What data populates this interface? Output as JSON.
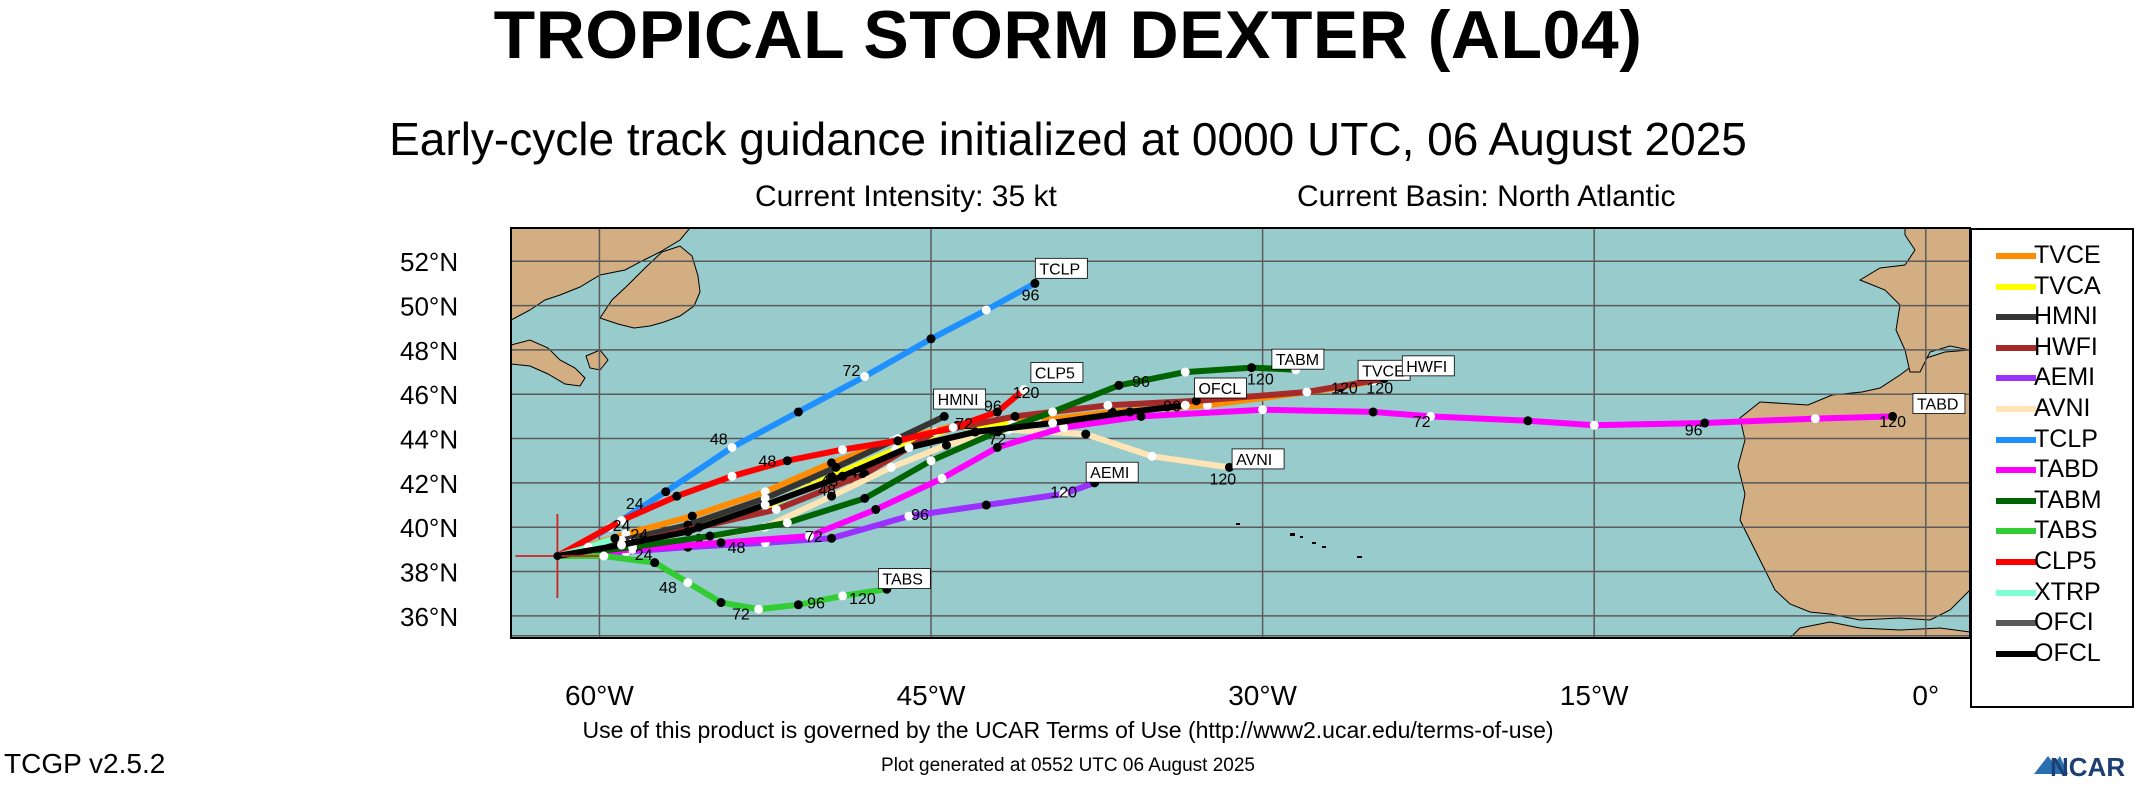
{
  "header": {
    "title": "TROPICAL STORM DEXTER (AL04)",
    "subtitle": "Early-cycle track guidance initialized at 0000 UTC, 06 August 2025",
    "intensity": "Current Intensity: 35 kt",
    "basin": "Current Basin: North Atlantic"
  },
  "map": {
    "lat_range": [
      35,
      53.5
    ],
    "lon_range": [
      -64,
      2
    ],
    "lat_ticks": [
      {
        "value": 36,
        "label": "36°N"
      },
      {
        "value": 38,
        "label": "38°N"
      },
      {
        "value": 40,
        "label": "40°N"
      },
      {
        "value": 42,
        "label": "42°N"
      },
      {
        "value": 44,
        "label": "44°N"
      },
      {
        "value": 46,
        "label": "46°N"
      },
      {
        "value": 48,
        "label": "48°N"
      },
      {
        "value": 50,
        "label": "50°N"
      },
      {
        "value": 52,
        "label": "52°N"
      }
    ],
    "lon_ticks": [
      {
        "value": -60,
        "label": "60°W"
      },
      {
        "value": -45,
        "label": "45°W"
      },
      {
        "value": -30,
        "label": "30°W"
      },
      {
        "value": -15,
        "label": "15°W"
      },
      {
        "value": 0,
        "label": "0°"
      }
    ],
    "initial_position": {
      "lon": -61.9,
      "lat": 38.7
    },
    "colors": {
      "ocean": "#98cbcc",
      "land": "#d2ae82",
      "grid": "#5a5a5a"
    }
  },
  "tracks": [
    {
      "name": "TVCE",
      "color": "#ff8c00",
      "points": [
        [
          -61.9,
          38.7
        ],
        [
          -58.8,
          39.7
        ],
        [
          -55.8,
          40.5
        ],
        [
          -52.5,
          41.6
        ],
        [
          -49.5,
          42.9
        ],
        [
          -46.7,
          43.9
        ],
        [
          -43.8,
          44.6
        ],
        [
          -40.2,
          44.8
        ],
        [
          -36.8,
          45.2
        ],
        [
          -32.5,
          45.5
        ],
        [
          -26.5,
          46.3
        ],
        [
          -25,
          46.6
        ]
      ],
      "labels": [
        {
          "text": "24",
          "lon": -59,
          "lat": 40.1
        },
        {
          "text": "72",
          "lon": -43.5,
          "lat": 44.7
        },
        {
          "text": "120",
          "lon": -26.3,
          "lat": 46.3
        }
      ],
      "end_box": {
        "text": "TVCE",
        "lon": -25.5,
        "lat": 46.9
      }
    },
    {
      "name": "TVCA",
      "color": "#ffff00",
      "points": [
        [
          -61.9,
          38.7
        ],
        [
          -58.5,
          39.4
        ],
        [
          -55.8,
          40.0
        ],
        [
          -52.5,
          40.9
        ],
        [
          -49.5,
          42.3
        ],
        [
          -46.6,
          43.5
        ],
        [
          -44,
          44.5
        ],
        [
          -41.3,
          44.7
        ]
      ],
      "labels": [],
      "end_box": null
    },
    {
      "name": "HMNI",
      "color": "#353535",
      "points": [
        [
          -61.9,
          38.7
        ],
        [
          -59,
          39.4
        ],
        [
          -56,
          40.1
        ],
        [
          -52.5,
          41.3
        ],
        [
          -49.3,
          42.7
        ],
        [
          -46.5,
          44
        ],
        [
          -44.4,
          45.0
        ]
      ],
      "labels": [
        {
          "text": "48",
          "lon": -48.3,
          "lat": 42.5
        }
      ],
      "end_box": {
        "text": "HMNI",
        "lon": -44.7,
        "lat": 45.6
      }
    },
    {
      "name": "HWFI",
      "color": "#a52a2a",
      "points": [
        [
          -61.9,
          38.7
        ],
        [
          -58.5,
          39.3
        ],
        [
          -55.5,
          40.0
        ],
        [
          -52,
          40.8
        ],
        [
          -48,
          42.4
        ],
        [
          -44.8,
          44.3
        ],
        [
          -41.2,
          45.0
        ],
        [
          -37,
          45.5
        ],
        [
          -33,
          45.7
        ],
        [
          -28,
          46.1
        ],
        [
          -24.5,
          46.7
        ]
      ],
      "labels": [
        {
          "text": "120",
          "lon": -24.7,
          "lat": 46.3
        }
      ],
      "end_box": {
        "text": "HWFI",
        "lon": -23.5,
        "lat": 47.1
      }
    },
    {
      "name": "AEMI",
      "color": "#9b30ff",
      "points": [
        [
          -61.9,
          38.7
        ],
        [
          -58.8,
          38.9
        ],
        [
          -56,
          39.1
        ],
        [
          -52.5,
          39.3
        ],
        [
          -49.5,
          39.5
        ],
        [
          -46,
          40.5
        ],
        [
          -42.5,
          41.0
        ],
        [
          -39,
          41.5
        ],
        [
          -37.6,
          42.0
        ]
      ],
      "labels": [
        {
          "text": "24",
          "lon": -58,
          "lat": 38.8
        },
        {
          "text": "48",
          "lon": -53.8,
          "lat": 39.1
        },
        {
          "text": "72",
          "lon": -50.3,
          "lat": 39.6
        },
        {
          "text": "96",
          "lon": -45.5,
          "lat": 40.6
        },
        {
          "text": "120",
          "lon": -39,
          "lat": 41.6
        }
      ],
      "end_box": {
        "text": "AEMI",
        "lon": -37.8,
        "lat": 42.3
      }
    },
    {
      "name": "AVNI",
      "color": "#ffe4b5",
      "points": [
        [
          -61.9,
          38.7
        ],
        [
          -59,
          39.1
        ],
        [
          -55.5,
          39.5
        ],
        [
          -52.5,
          40.0
        ],
        [
          -49.5,
          41.4
        ],
        [
          -46.8,
          42.7
        ],
        [
          -44.3,
          43.7
        ],
        [
          -41.5,
          44.4
        ],
        [
          -38,
          44.2
        ],
        [
          -35,
          43.2
        ],
        [
          -31.5,
          42.7
        ]
      ],
      "labels": [
        {
          "text": "48",
          "lon": -49.7,
          "lat": 41.7
        },
        {
          "text": "120",
          "lon": -31.8,
          "lat": 42.2
        }
      ],
      "end_box": {
        "text": "AVNI",
        "lon": -31.2,
        "lat": 42.9
      }
    },
    {
      "name": "TCLP",
      "color": "#1e90ff",
      "points": [
        [
          -61.9,
          38.7
        ],
        [
          -59.5,
          40.0
        ],
        [
          -57,
          41.6
        ],
        [
          -54,
          43.6
        ],
        [
          -51,
          45.2
        ],
        [
          -48,
          46.8
        ],
        [
          -45,
          48.5
        ],
        [
          -42.5,
          49.8
        ],
        [
          -40.3,
          51.0
        ]
      ],
      "labels": [
        {
          "text": "48",
          "lon": -54.6,
          "lat": 44.0
        },
        {
          "text": "72",
          "lon": -48.6,
          "lat": 47.1
        },
        {
          "text": "96",
          "lon": -40.5,
          "lat": 50.5
        }
      ],
      "end_box": {
        "text": "TCLP",
        "lon": -40.1,
        "lat": 51.5
      }
    },
    {
      "name": "TABD",
      "color": "#ff00ff",
      "points": [
        [
          -61.9,
          38.7
        ],
        [
          -58.5,
          39.0
        ],
        [
          -54.5,
          39.3
        ],
        [
          -50.5,
          39.6
        ],
        [
          -47.5,
          40.8
        ],
        [
          -44.5,
          42.2
        ],
        [
          -42,
          43.6
        ],
        [
          -39,
          44.5
        ],
        [
          -35.5,
          45.0
        ],
        [
          -30,
          45.3
        ],
        [
          -25,
          45.2
        ],
        [
          -22.4,
          45.0
        ],
        [
          -18,
          44.8
        ],
        [
          -15,
          44.6
        ],
        [
          -10,
          44.7
        ],
        [
          -5,
          44.9
        ],
        [
          -1.5,
          45.0
        ]
      ],
      "labels": [
        {
          "text": "72",
          "lon": -22.8,
          "lat": 44.8
        },
        {
          "text": "96",
          "lon": -10.5,
          "lat": 44.4
        },
        {
          "text": "120",
          "lon": -1.5,
          "lat": 44.8
        }
      ],
      "end_box": {
        "text": "TABD",
        "lon": -0.4,
        "lat": 45.4
      }
    },
    {
      "name": "TABM",
      "color": "#006400",
      "points": [
        [
          -61.9,
          38.7
        ],
        [
          -58.5,
          39.1
        ],
        [
          -55,
          39.6
        ],
        [
          -51.5,
          40.2
        ],
        [
          -48,
          41.3
        ],
        [
          -45,
          43.0
        ],
        [
          -42,
          44.3
        ],
        [
          -39.5,
          45.2
        ],
        [
          -36.5,
          46.4
        ],
        [
          -33.5,
          47.0
        ],
        [
          -30.5,
          47.2
        ],
        [
          -28.5,
          47.1
        ]
      ],
      "labels": [
        {
          "text": "96",
          "lon": -35.5,
          "lat": 46.6
        },
        {
          "text": "120",
          "lon": -30.1,
          "lat": 46.7
        }
      ],
      "end_box": {
        "text": "TABM",
        "lon": -29.4,
        "lat": 47.4
      }
    },
    {
      "name": "TABS",
      "color": "#32cd32",
      "points": [
        [
          -61.9,
          38.7
        ],
        [
          -59.8,
          38.7
        ],
        [
          -57.5,
          38.4
        ],
        [
          -56,
          37.5
        ],
        [
          -54.5,
          36.6
        ],
        [
          -52.8,
          36.3
        ],
        [
          -51,
          36.5
        ],
        [
          -49,
          36.9
        ],
        [
          -47,
          37.2
        ]
      ],
      "labels": [
        {
          "text": "48",
          "lon": -56.9,
          "lat": 37.3
        },
        {
          "text": "72",
          "lon": -53.6,
          "lat": 36.1
        },
        {
          "text": "96",
          "lon": -50.2,
          "lat": 36.6
        },
        {
          "text": "120",
          "lon": -48.1,
          "lat": 36.8
        }
      ],
      "end_box": {
        "text": "TABS",
        "lon": -47.2,
        "lat": 37.5
      }
    },
    {
      "name": "CLP5",
      "color": "#ff0000",
      "points": [
        [
          -61.9,
          38.7
        ],
        [
          -59,
          40.3
        ],
        [
          -56.5,
          41.4
        ],
        [
          -54,
          42.3
        ],
        [
          -51.5,
          43.0
        ],
        [
          -49,
          43.5
        ],
        [
          -46.5,
          43.9
        ],
        [
          -44,
          44.5
        ],
        [
          -42,
          45.2
        ],
        [
          -40.8,
          46.2
        ]
      ],
      "labels": [
        {
          "text": "24",
          "lon": -58.4,
          "lat": 41.1
        },
        {
          "text": "48",
          "lon": -52.4,
          "lat": 43.0
        },
        {
          "text": "96",
          "lon": -42.2,
          "lat": 45.5
        },
        {
          "text": "120",
          "lon": -40.7,
          "lat": 46.1
        }
      ],
      "end_box": {
        "text": "CLP5",
        "lon": -40.3,
        "lat": 46.8
      }
    },
    {
      "name": "XTRP",
      "color": "#7fffd4",
      "points": [
        [
          -61.9,
          38.7
        ],
        [
          -60.5,
          39.1
        ],
        [
          -59.3,
          39.5
        ]
      ],
      "labels": [],
      "end_box": null
    },
    {
      "name": "OFCI",
      "color": "#5a5a5a",
      "points": [
        [
          -61.9,
          38.7
        ],
        [
          -59,
          39.2
        ],
        [
          -56,
          39.8
        ],
        [
          -52.5,
          41.0
        ],
        [
          -49,
          42.3
        ],
        [
          -46,
          43.6
        ],
        [
          -43,
          44.3
        ],
        [
          -39.5,
          44.7
        ],
        [
          -36,
          45.2
        ],
        [
          -33.5,
          45.5
        ]
      ],
      "labels": [
        {
          "text": "72",
          "lon": -42,
          "lat": 44.0
        }
      ],
      "end_box": null
    },
    {
      "name": "OFCL",
      "color": "#000000",
      "points": [
        [
          -61.9,
          38.7
        ],
        [
          -59,
          39.2
        ],
        [
          -56,
          39.8
        ],
        [
          -52.5,
          41.0
        ],
        [
          -49,
          42.3
        ],
        [
          -46,
          43.6
        ],
        [
          -43,
          44.3
        ],
        [
          -39.5,
          44.7
        ],
        [
          -36,
          45.2
        ],
        [
          -33.5,
          45.5
        ]
      ],
      "labels": [
        {
          "text": "24",
          "lon": -58.2,
          "lat": 39.7
        },
        {
          "text": "48",
          "lon": -49.6,
          "lat": 42.1
        },
        {
          "text": "96",
          "lon": -34.1,
          "lat": 45.5
        }
      ],
      "end_box": {
        "text": "OFCL",
        "lon": -32.9,
        "lat": 46.1
      }
    }
  ],
  "footer": {
    "terms": "Use of this product is governed by the UCAR Terms of Use (http://www2.ucar.edu/terms-of-use)",
    "generated": "Plot generated at 0552 UTC   06 August 2025",
    "version": "TCGP v2.5.2",
    "logo_text": "NCAR"
  }
}
